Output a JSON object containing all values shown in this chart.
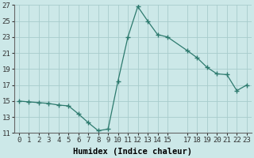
{
  "x": [
    0,
    1,
    2,
    3,
    4,
    5,
    6,
    7,
    8,
    9,
    10,
    11,
    12,
    13,
    14,
    15,
    17,
    18,
    19,
    20,
    21,
    22,
    23
  ],
  "y": [
    15.0,
    14.9,
    14.8,
    14.7,
    14.5,
    14.4,
    13.4,
    12.3,
    11.3,
    11.5,
    17.5,
    23.0,
    26.8,
    25.0,
    23.3,
    23.0,
    21.3,
    20.4,
    19.2,
    18.4,
    18.3,
    16.3,
    17.0
  ],
  "line_color": "#2d7a6e",
  "marker": "+",
  "marker_size": 4,
  "bg_color": "#cce8e8",
  "grid_color": "#a8cccc",
  "xlabel": "Humidex (Indice chaleur)",
  "ylim": [
    11,
    27
  ],
  "xlim": [
    -0.5,
    23.5
  ],
  "yticks": [
    11,
    13,
    15,
    17,
    19,
    21,
    23,
    25,
    27
  ],
  "xticks": [
    0,
    1,
    2,
    3,
    4,
    5,
    6,
    7,
    8,
    9,
    10,
    11,
    12,
    13,
    14,
    15,
    17,
    18,
    19,
    20,
    21,
    22,
    23
  ],
  "xtick_labels": [
    "0",
    "1",
    "2",
    "3",
    "4",
    "5",
    "6",
    "7",
    "8",
    "9",
    "10",
    "11",
    "12",
    "13",
    "14",
    "15",
    "17",
    "18",
    "19",
    "20",
    "21",
    "22",
    "23"
  ],
  "xlabel_fontsize": 7.5,
  "tick_fontsize": 6.5,
  "linewidth": 0.9
}
